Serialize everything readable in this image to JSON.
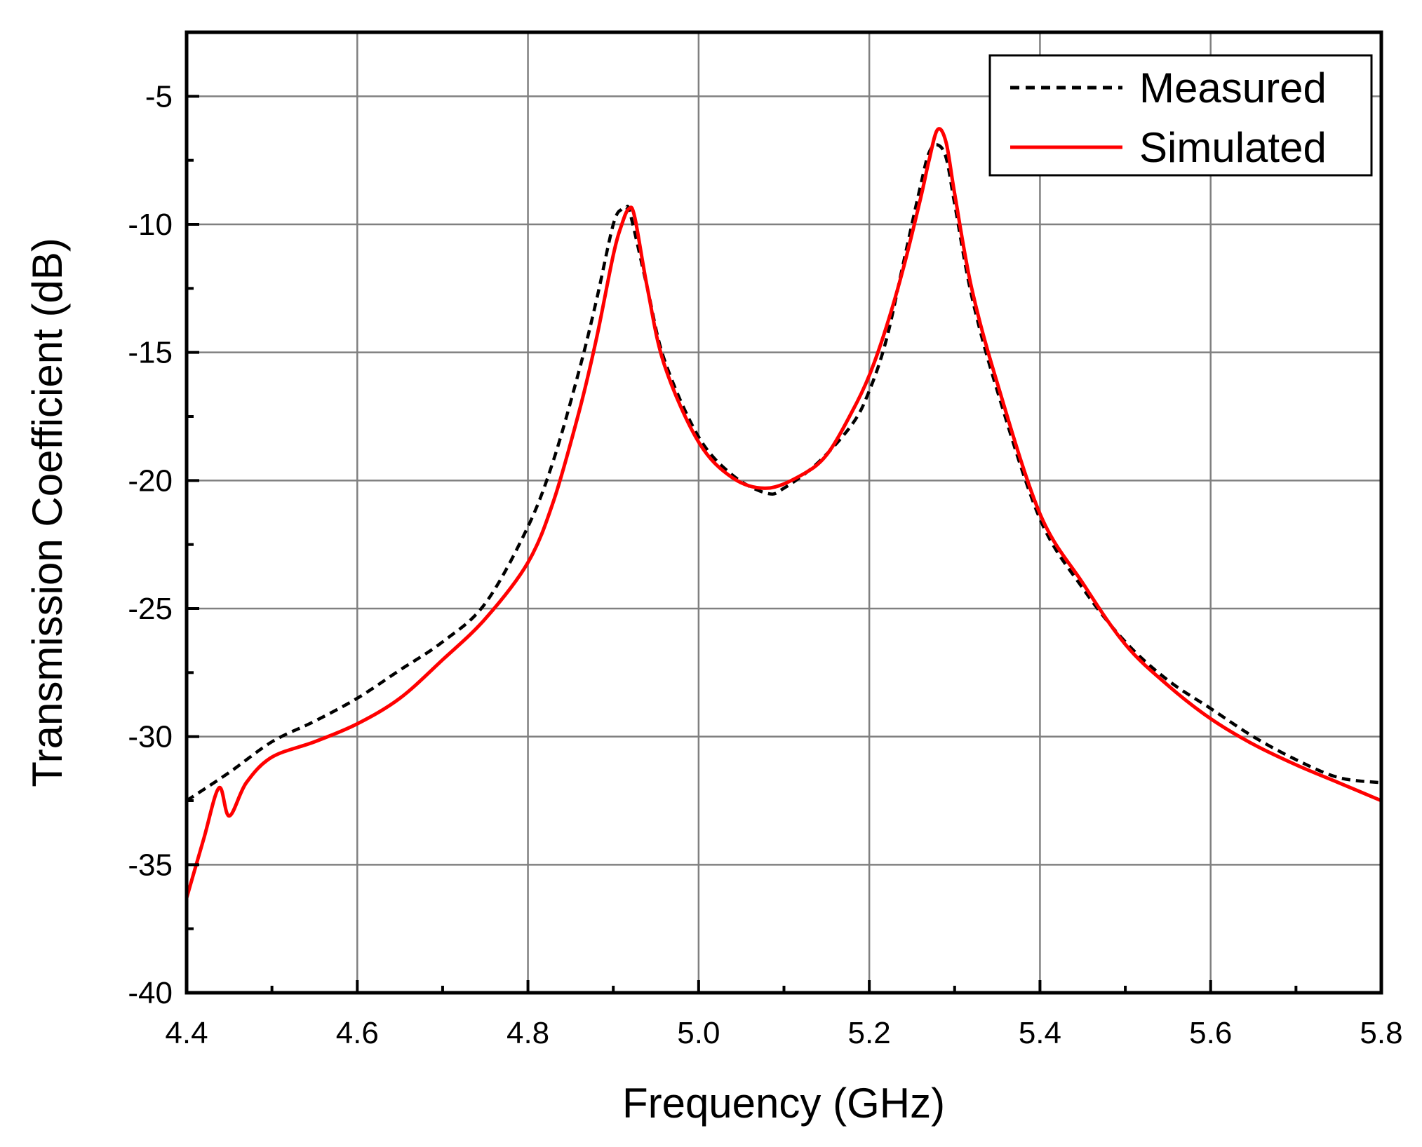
{
  "chart_data": {
    "type": "line",
    "title": "",
    "xlabel": "Frequency (GHz)",
    "ylabel": "Transmission Coefficient (dB)",
    "xlim": [
      4.4,
      5.8
    ],
    "ylim": [
      -40,
      -2.5
    ],
    "grid": true,
    "legend_position": "top-right",
    "x_ticks": [
      4.4,
      4.6,
      4.8,
      5.0,
      5.2,
      5.4,
      5.6,
      5.8
    ],
    "x_tick_labels": [
      "4.4",
      "4.6",
      "4.8",
      "5.0",
      "5.2",
      "5.4",
      "5.6",
      "5.8"
    ],
    "y_ticks": [
      -40,
      -35,
      -30,
      -25,
      -20,
      -15,
      -10,
      -5
    ],
    "y_tick_labels": [
      "-40",
      "-35",
      "-30",
      "-25",
      "-20",
      "-15",
      "-10",
      "-5"
    ],
    "series": [
      {
        "name": "Measured",
        "color": "#000000",
        "style": "dashed",
        "x": [
          4.4,
          4.45,
          4.5,
          4.55,
          4.6,
          4.65,
          4.7,
          4.75,
          4.8,
          4.83,
          4.86,
          4.88,
          4.9,
          4.91,
          4.915,
          4.92,
          4.94,
          4.96,
          5.0,
          5.04,
          5.08,
          5.1,
          5.14,
          5.18,
          5.2,
          5.22,
          5.24,
          5.26,
          5.27,
          5.28,
          5.29,
          5.3,
          5.32,
          5.35,
          5.4,
          5.45,
          5.5,
          5.55,
          5.6,
          5.65,
          5.7,
          5.75,
          5.8
        ],
        "y": [
          -32.5,
          -31.4,
          -30.2,
          -29.4,
          -28.5,
          -27.4,
          -26.3,
          -24.8,
          -21.8,
          -19.2,
          -15.7,
          -13.0,
          -10.0,
          -9.4,
          -9.35,
          -9.6,
          -12.5,
          -15.3,
          -18.3,
          -19.8,
          -20.5,
          -20.3,
          -19.3,
          -17.8,
          -16.5,
          -14.5,
          -11.5,
          -8.5,
          -7.2,
          -6.9,
          -7.4,
          -9.2,
          -12.8,
          -16.5,
          -21.5,
          -24.2,
          -26.3,
          -27.8,
          -28.9,
          -30.0,
          -30.9,
          -31.6,
          -31.8
        ]
      },
      {
        "name": "Simulated",
        "color": "#ff0000",
        "style": "solid",
        "x": [
          4.4,
          4.42,
          4.438,
          4.45,
          4.47,
          4.5,
          4.55,
          4.6,
          4.65,
          4.7,
          4.75,
          4.8,
          4.83,
          4.86,
          4.88,
          4.9,
          4.91,
          4.918,
          4.925,
          4.94,
          4.96,
          5.0,
          5.04,
          5.08,
          5.12,
          5.15,
          5.18,
          5.2,
          5.22,
          5.24,
          5.26,
          5.27,
          5.28,
          5.29,
          5.3,
          5.32,
          5.35,
          5.4,
          5.45,
          5.5,
          5.55,
          5.6,
          5.65,
          5.7,
          5.75,
          5.8
        ],
        "y": [
          -36.3,
          -34.0,
          -32.0,
          -33.1,
          -31.8,
          -30.8,
          -30.2,
          -29.5,
          -28.5,
          -27.0,
          -25.4,
          -23.2,
          -20.8,
          -17.3,
          -14.5,
          -11.2,
          -10.0,
          -9.4,
          -9.7,
          -12.5,
          -15.5,
          -18.5,
          -19.9,
          -20.3,
          -19.8,
          -19.0,
          -17.3,
          -15.9,
          -14.0,
          -11.7,
          -9.0,
          -7.5,
          -6.3,
          -6.8,
          -8.8,
          -12.5,
          -16.2,
          -21.3,
          -24.0,
          -26.4,
          -28.0,
          -29.3,
          -30.3,
          -31.1,
          -31.8,
          -32.5
        ]
      }
    ]
  }
}
